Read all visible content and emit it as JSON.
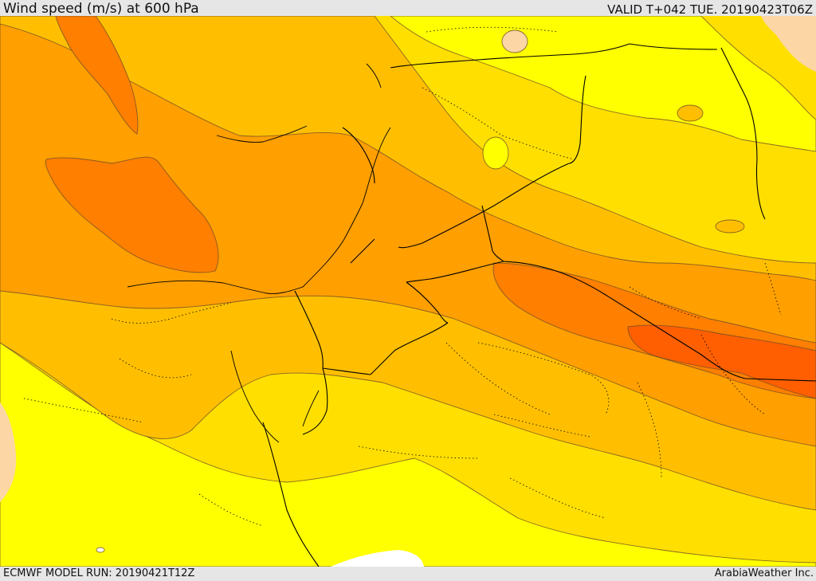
{
  "header": {
    "title": "Wind speed (m/s) at 600 hPa",
    "valid": "VALID T+042 TUE. 20190423T06Z"
  },
  "footer": {
    "model_run": "ECMWF MODEL RUN: 20190421T12Z",
    "credit": "ArabiaWeather Inc."
  },
  "colors": {
    "land_outside": "#fcd6a4",
    "band_1": "#ffff00",
    "band_2": "#ffdf00",
    "band_3": "#ffbf00",
    "band_4": "#ff9f00",
    "band_5": "#ff7f00",
    "band_6": "#ff5f00",
    "contour": "#6b4b2a",
    "border": "#000000"
  }
}
